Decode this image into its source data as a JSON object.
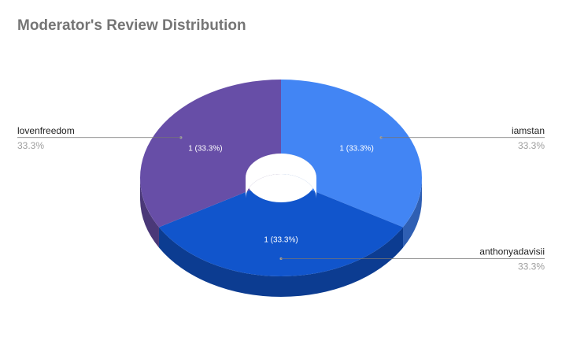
{
  "chart_data": {
    "type": "pie",
    "variant": "3d-donut",
    "title": "Moderator's Review Distribution",
    "slices": [
      {
        "name": "iamstan",
        "value": 1,
        "percent": "33.3%",
        "label": "1 (33.3%)",
        "color": "#4285f4",
        "side_color": "#2f5fb3"
      },
      {
        "name": "anthonyadavisii",
        "value": 1,
        "percent": "33.3%",
        "label": "1 (33.3%)",
        "color": "#1155cc",
        "side_color": "#0c3c91"
      },
      {
        "name": "lovenfreedom",
        "value": 1,
        "percent": "33.3%",
        "label": "1 (33.3%)",
        "color": "#674ea7",
        "side_color": "#4a3878"
      }
    ],
    "legend_position": "labeled"
  }
}
